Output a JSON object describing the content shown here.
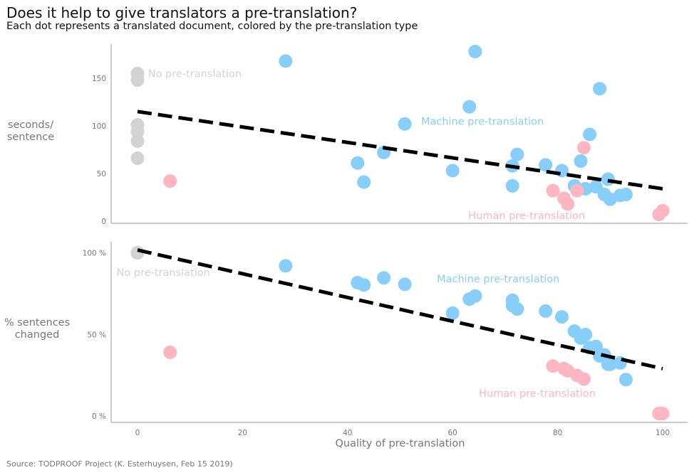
{
  "title": "Does it help to give translators a pre-translation?",
  "subtitle": "Each dot represents a translated document, colored by the pre-translation type",
  "source": "Source: TODPROOF Project (K. Esterhuysen, Feb 15 2019)",
  "colors": {
    "none": "#d3d3d3",
    "machine": "#87cefa",
    "human": "#ffb6c1",
    "trend": "#000000",
    "axis": "#aaaaaa"
  },
  "chart_data": [
    {
      "type": "scatter",
      "title": "",
      "xlabel": "",
      "ylabel": "seconds/\nsentence",
      "ylabel_lines": [
        "seconds/",
        "sentence"
      ],
      "xlim": [
        -5,
        105
      ],
      "ylim": [
        0,
        185
      ],
      "yticks": [
        0,
        50,
        100,
        150
      ],
      "ytick_labels": [
        "0",
        "50",
        "100",
        "150"
      ],
      "annotations": [
        {
          "text": "No pre-translation",
          "series": "none",
          "x": 2,
          "y": 155
        },
        {
          "text": "Machine pre-translation",
          "series": "machine",
          "x": 54,
          "y": 105
        },
        {
          "text": "Human pre-translation",
          "series": "human",
          "x": 63,
          "y": 6
        }
      ],
      "trend": {
        "x": [
          0,
          100
        ],
        "y": [
          115,
          34
        ]
      },
      "series": [
        {
          "name": "No pre-translation",
          "key": "none",
          "x": [
            0,
            0,
            0,
            0,
            0,
            0
          ],
          "y": [
            155,
            148,
            101,
            94,
            84,
            66
          ]
        },
        {
          "name": "Machine pre-translation",
          "key": "machine",
          "x": [
            28.2,
            41.9,
            43.1,
            46.9,
            50.9,
            60,
            63.2,
            64.3,
            71.4,
            71.4,
            72.3,
            77.7,
            80.8,
            83.2,
            84.4,
            85.3,
            86.1,
            87.3,
            88,
            88.9,
            89.6,
            90,
            91.9,
            93
          ],
          "y": [
            168,
            61,
            41,
            72,
            102,
            53,
            120,
            178,
            58,
            37,
            70,
            59,
            53,
            37,
            63,
            34,
            91,
            36,
            139,
            28,
            44,
            23,
            27,
            28
          ]
        },
        {
          "name": "Human pre-translation",
          "key": "human",
          "x": [
            6.2,
            79.1,
            81.2,
            81.9,
            83.7,
            85,
            99.3,
            100
          ],
          "y": [
            42,
            32,
            24,
            18,
            32,
            77,
            7,
            11
          ]
        }
      ]
    },
    {
      "type": "scatter",
      "title": "",
      "xlabel": "Quality of pre-translation",
      "ylabel": "% sentences\nchanged",
      "ylabel_lines": [
        "% sentences",
        "changed"
      ],
      "xlim": [
        -5,
        105
      ],
      "ylim": [
        -3,
        105
      ],
      "xticks": [
        0,
        20,
        40,
        60,
        80,
        100
      ],
      "xtick_labels": [
        "0",
        "20",
        "40",
        "60",
        "80",
        "100"
      ],
      "yticks": [
        0,
        50,
        100
      ],
      "ytick_labels": [
        "0 %",
        "50 %",
        "100 %"
      ],
      "annotations": [
        {
          "text": "No pre-translation",
          "series": "none",
          "x": -4,
          "y": 88
        },
        {
          "text": "Machine pre-translation",
          "series": "machine",
          "x": 57,
          "y": 84
        },
        {
          "text": "Human pre-translation",
          "series": "human",
          "x": 65,
          "y": 14
        }
      ],
      "trend": {
        "x": [
          0,
          100
        ],
        "y": [
          101.7,
          29
        ]
      },
      "series": [
        {
          "name": "No pre-translation",
          "key": "none",
          "x": [
            0,
            0,
            0,
            0,
            0,
            0
          ],
          "y": [
            100,
            100,
            100,
            100,
            100,
            100
          ]
        },
        {
          "name": "Machine pre-translation",
          "key": "machine",
          "x": [
            28.2,
            41.9,
            43.1,
            46.9,
            50.9,
            60,
            63.2,
            64.3,
            71.4,
            71.4,
            72.3,
            77.7,
            80.8,
            83.2,
            84.4,
            85.3,
            86.1,
            87.3,
            88,
            88.9,
            89.6,
            90,
            91.9,
            93
          ],
          "y": [
            92,
            81.7,
            80.3,
            84.6,
            80.7,
            63,
            71.6,
            73.5,
            70.9,
            67.7,
            65.5,
            64.3,
            60.7,
            52,
            47.7,
            49.9,
            41.9,
            42.6,
            36.8,
            37.5,
            31.7,
            31.7,
            32.5,
            22.3
          ]
        },
        {
          "name": "Human pre-translation",
          "key": "human",
          "x": [
            6.2,
            79.1,
            81.2,
            81.9,
            83.7,
            85,
            99.3,
            100
          ],
          "y": [
            39,
            30.6,
            29.1,
            27.7,
            24.8,
            22.6,
            1.5,
            1.5
          ]
        }
      ]
    }
  ]
}
